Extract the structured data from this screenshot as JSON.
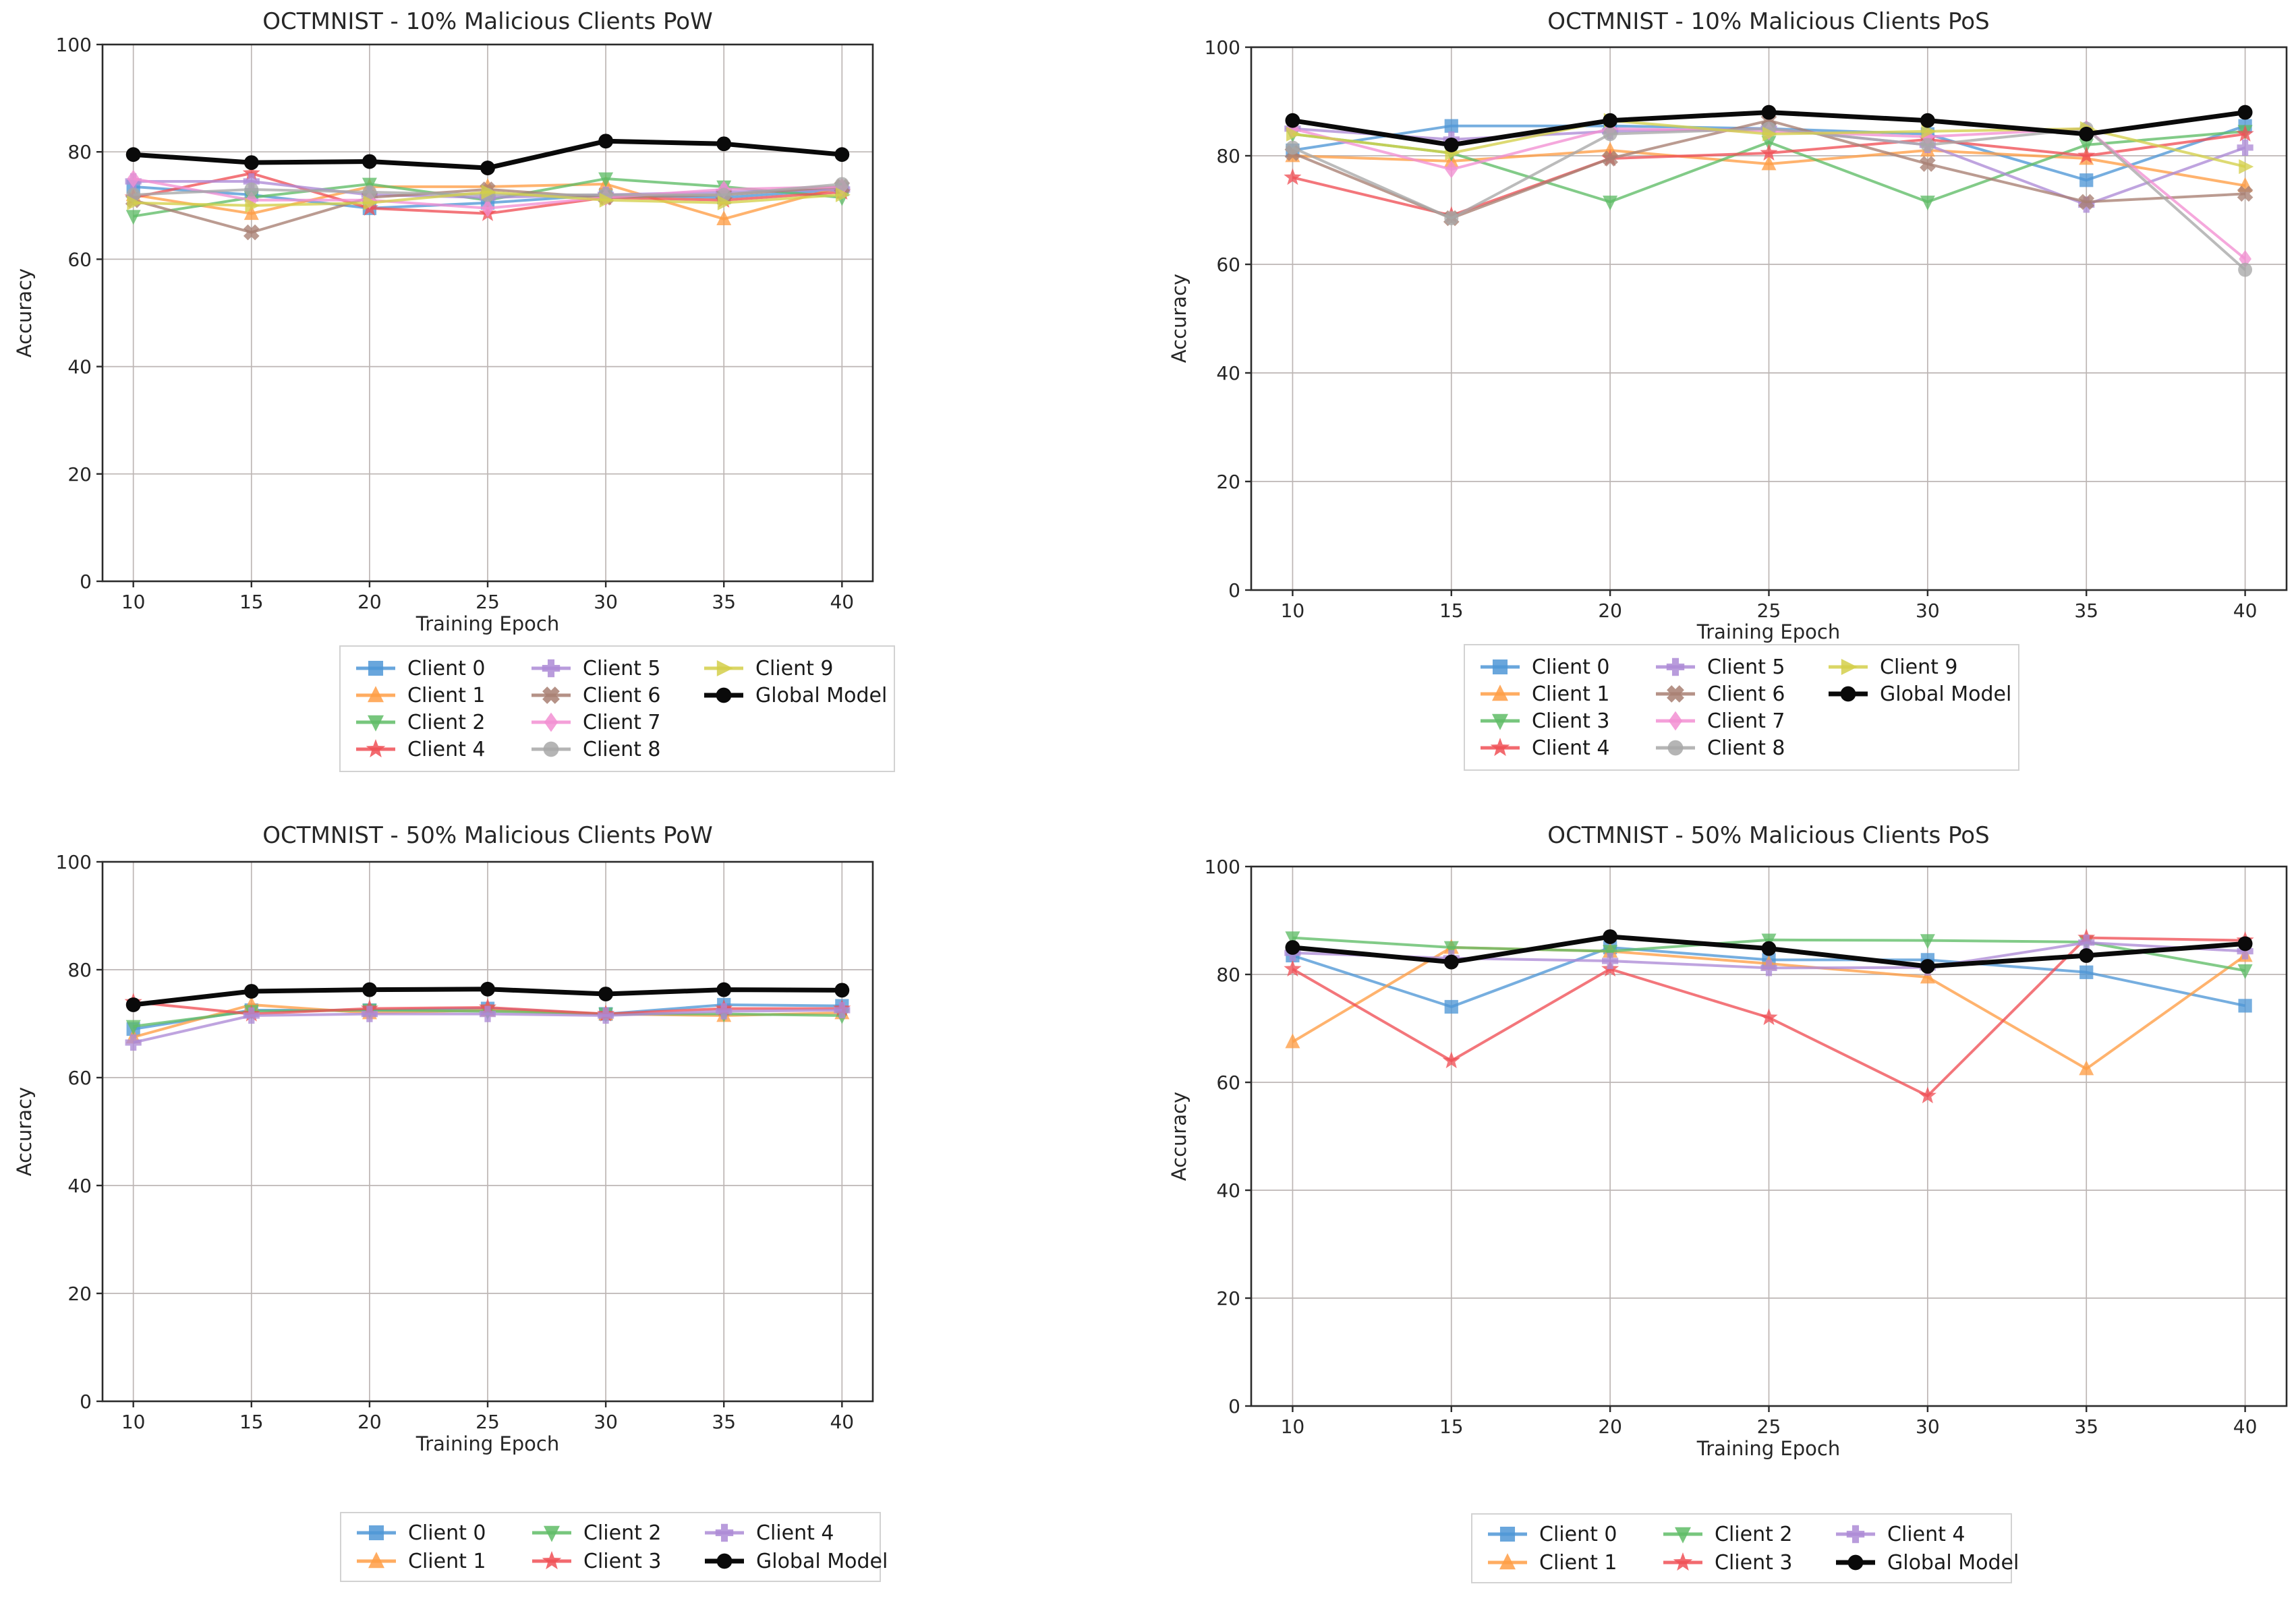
{
  "figure": {
    "background": "#ffffff",
    "grid_color": "#bdb6b4",
    "spine_color": "#2b2b2b",
    "text_color": "#262626",
    "legend_border": "#d2d2d2"
  },
  "chart_data": [
    {
      "type": "line",
      "title": "OCTMNIST - 10% Malicious Clients PoW",
      "xlabel": "Training Epoch",
      "ylabel": "Accuracy",
      "x": [
        10,
        15,
        20,
        25,
        30,
        35,
        40
      ],
      "ylim": [
        0,
        100
      ],
      "yticks": [
        0,
        20,
        40,
        60,
        80,
        100
      ],
      "grid": true,
      "legend_position": "below",
      "legend_columns": 3,
      "series": [
        {
          "name": "Client 0",
          "color": "#4f97d6",
          "marker": "square",
          "values": [
            73.5,
            72,
            69.5,
            70.5,
            72,
            71.5,
            73
          ]
        },
        {
          "name": "Client 1",
          "color": "#ff9d45",
          "marker": "tri-up",
          "values": [
            72,
            68.5,
            73.5,
            73.5,
            74,
            67.5,
            73.5
          ]
        },
        {
          "name": "Client 2",
          "color": "#5fbc66",
          "marker": "tri-down",
          "values": [
            68,
            71.5,
            74,
            71,
            75,
            73.5,
            71.5
          ]
        },
        {
          "name": "Client 4",
          "color": "#f05056",
          "marker": "star",
          "values": [
            71.5,
            76,
            69.5,
            68.5,
            71.5,
            71,
            72.5
          ]
        },
        {
          "name": "Client 5",
          "color": "#ad8bd6",
          "marker": "plus",
          "values": [
            74.5,
            74.5,
            72,
            71.5,
            72,
            72.5,
            73
          ]
        },
        {
          "name": "Client 6",
          "color": "#a87f72",
          "marker": "x",
          "values": [
            71,
            65,
            71.5,
            73,
            71.5,
            72,
            73.5
          ]
        },
        {
          "name": "Client 7",
          "color": "#f28fd2",
          "marker": "diamond",
          "values": [
            75,
            71,
            71,
            69.5,
            71.5,
            73,
            73.5
          ]
        },
        {
          "name": "Client 8",
          "color": "#a8a8a8",
          "marker": "circle",
          "values": [
            72,
            73,
            72.5,
            72,
            72,
            72,
            74
          ]
        },
        {
          "name": "Client 9",
          "color": "#d3cf4a",
          "marker": "tri-right",
          "values": [
            70.5,
            70,
            70.5,
            72.5,
            71,
            70.5,
            72
          ]
        },
        {
          "name": "Global Model",
          "color": "#0a0a0a",
          "marker": "circle",
          "global": true,
          "values": [
            79.5,
            78,
            78.2,
            77,
            82,
            81.5,
            79.5
          ]
        }
      ]
    },
    {
      "type": "line",
      "title": "OCTMNIST - 10% Malicious Clients PoS",
      "xlabel": "Training Epoch",
      "ylabel": "Accuracy",
      "x": [
        10,
        15,
        20,
        25,
        30,
        35,
        40
      ],
      "ylim": [
        0,
        100
      ],
      "yticks": [
        0,
        20,
        40,
        60,
        80,
        100
      ],
      "grid": true,
      "legend_position": "below",
      "legend_columns": 3,
      "series": [
        {
          "name": "Client 0",
          "color": "#4f97d6",
          "marker": "square",
          "values": [
            81,
            85.5,
            85.5,
            85,
            84,
            75.5,
            85.5
          ]
        },
        {
          "name": "Client 1",
          "color": "#ff9d45",
          "marker": "tri-up",
          "values": [
            80,
            79,
            81,
            78.5,
            81,
            79.5,
            74.5
          ]
        },
        {
          "name": "Client 3",
          "color": "#5fbc66",
          "marker": "tri-down",
          "values": [
            84,
            80.5,
            71.5,
            82.5,
            71.5,
            82,
            84.5
          ]
        },
        {
          "name": "Client 4",
          "color": "#f05056",
          "marker": "star",
          "values": [
            76,
            69,
            79.5,
            80.5,
            83,
            80,
            84
          ]
        },
        {
          "name": "Client 5",
          "color": "#ad8bd6",
          "marker": "plus",
          "values": [
            85,
            83,
            84.5,
            85,
            82,
            71,
            81.5
          ]
        },
        {
          "name": "Client 6",
          "color": "#a87f72",
          "marker": "x",
          "values": [
            80.5,
            68.5,
            79.5,
            86.5,
            78.5,
            71.5,
            73
          ]
        },
        {
          "name": "Client 7",
          "color": "#f28fd2",
          "marker": "diamond",
          "values": [
            85,
            77.5,
            85,
            84.5,
            83.5,
            85,
            61
          ]
        },
        {
          "name": "Client 8",
          "color": "#a8a8a8",
          "marker": "circle",
          "values": [
            81.5,
            68.5,
            84,
            85,
            82,
            85,
            59
          ]
        },
        {
          "name": "Client 9",
          "color": "#d3cf4a",
          "marker": "tri-right",
          "values": [
            84,
            80.5,
            86.5,
            84,
            84.5,
            85,
            78
          ]
        },
        {
          "name": "Global Model",
          "color": "#0a0a0a",
          "marker": "circle",
          "global": true,
          "values": [
            86.5,
            82,
            86.5,
            88,
            86.5,
            84,
            88
          ]
        }
      ]
    },
    {
      "type": "line",
      "title": "OCTMNIST - 50% Malicious Clients PoW",
      "xlabel": "Training Epoch",
      "ylabel": "Accuracy",
      "x": [
        10,
        15,
        20,
        25,
        30,
        35,
        40
      ],
      "ylim": [
        0,
        100
      ],
      "yticks": [
        0,
        20,
        40,
        60,
        80,
        100
      ],
      "grid": true,
      "legend_position": "below",
      "legend_columns": 3,
      "series": [
        {
          "name": "Client 0",
          "color": "#4f97d6",
          "marker": "square",
          "values": [
            69,
            72.5,
            72.5,
            72.8,
            71.8,
            73.5,
            73.3
          ]
        },
        {
          "name": "Client 1",
          "color": "#ff9d45",
          "marker": "tri-up",
          "values": [
            67.5,
            73.5,
            72,
            72.5,
            71.8,
            71.5,
            72
          ]
        },
        {
          "name": "Client 2",
          "color": "#5fbc66",
          "marker": "tri-down",
          "values": [
            69.5,
            72.3,
            72.5,
            72.3,
            71.8,
            71.8,
            71.5
          ]
        },
        {
          "name": "Client 3",
          "color": "#f05056",
          "marker": "star",
          "values": [
            74,
            71.8,
            72.8,
            73,
            71.8,
            72.8,
            72.8
          ]
        },
        {
          "name": "Client 4",
          "color": "#ad8bd6",
          "marker": "plus",
          "values": [
            66.5,
            71.5,
            71.8,
            71.8,
            71.5,
            72.3,
            72.5
          ]
        },
        {
          "name": "Global Model",
          "color": "#0a0a0a",
          "marker": "circle",
          "global": true,
          "values": [
            73.5,
            76,
            76.3,
            76.4,
            75.5,
            76.3,
            76.2
          ]
        }
      ]
    },
    {
      "type": "line",
      "title": "OCTMNIST - 50% Malicious Clients PoS",
      "xlabel": "Training Epoch",
      "ylabel": "Accuracy",
      "x": [
        10,
        15,
        20,
        25,
        30,
        35,
        40
      ],
      "ylim": [
        0,
        100
      ],
      "yticks": [
        0,
        20,
        40,
        60,
        80,
        100
      ],
      "grid": true,
      "legend_position": "below",
      "legend_columns": 3,
      "series": [
        {
          "name": "Client 0",
          "color": "#4f97d6",
          "marker": "square",
          "values": [
            83.5,
            74,
            85,
            82.7,
            82.7,
            80.4,
            74.2
          ]
        },
        {
          "name": "Client 1",
          "color": "#ff9d45",
          "marker": "tri-up",
          "values": [
            67.5,
            85,
            84.3,
            82,
            79.5,
            62.5,
            83.5
          ]
        },
        {
          "name": "Client 2",
          "color": "#5fbc66",
          "marker": "tri-down",
          "values": [
            86.8,
            85,
            84.3,
            86.4,
            86.3,
            86,
            80.7
          ]
        },
        {
          "name": "Client 3",
          "color": "#f05056",
          "marker": "star",
          "values": [
            81,
            64,
            81,
            72,
            57.5,
            86.8,
            86.3
          ]
        },
        {
          "name": "Client 4",
          "color": "#ad8bd6",
          "marker": "plus",
          "values": [
            84,
            83,
            82.5,
            81.2,
            81.3,
            85.9,
            84.3
          ]
        },
        {
          "name": "Global Model",
          "color": "#0a0a0a",
          "marker": "circle",
          "global": true,
          "values": [
            85,
            82.3,
            87,
            84.8,
            81.5,
            83.5,
            85.7
          ]
        }
      ]
    }
  ]
}
